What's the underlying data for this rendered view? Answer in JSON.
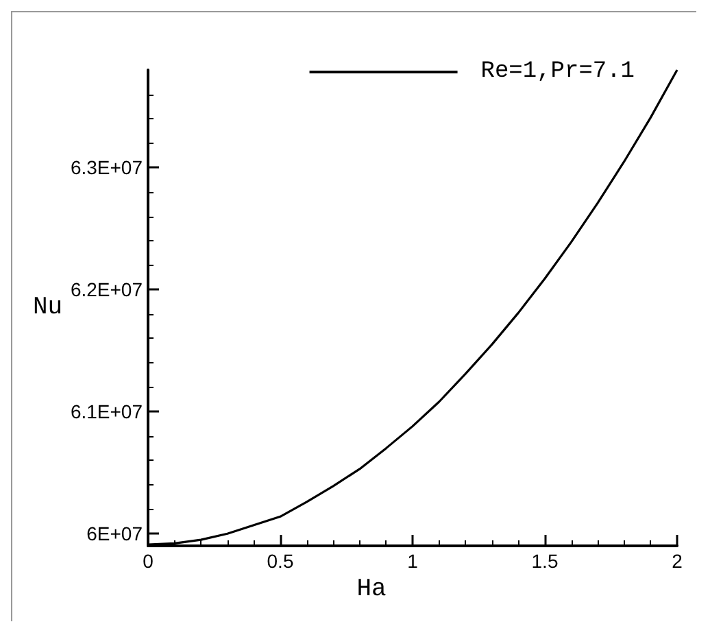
{
  "chart_data": {
    "type": "line",
    "xlabel": "Ha",
    "ylabel": "Nu",
    "x": [
      0,
      0.1,
      0.2,
      0.3,
      0.4,
      0.5,
      0.6,
      0.7,
      0.8,
      0.9,
      1.0,
      1.1,
      1.2,
      1.3,
      1.4,
      1.5,
      1.6,
      1.7,
      1.8,
      1.9,
      2.0
    ],
    "series": [
      {
        "name": "Re=1,Pr=7.1",
        "color": "#000000",
        "values": [
          59910000,
          59920000,
          59950000,
          60000000,
          60070000,
          60140000,
          60260000,
          60390000,
          60530000,
          60700000,
          60880000,
          61080000,
          61310000,
          61550000,
          61810000,
          62090000,
          62390000,
          62710000,
          63050000,
          63410000,
          63800000
        ]
      }
    ],
    "xlim": [
      0,
      2
    ],
    "xticks": [
      0,
      0.5,
      1,
      1.5,
      2
    ],
    "ylim": [
      59900000,
      63800000
    ],
    "yticks": [
      {
        "value": 60000000,
        "label": "6E+07"
      },
      {
        "value": 61000000,
        "label": "6.1E+07"
      },
      {
        "value": 62000000,
        "label": "6.2E+07"
      },
      {
        "value": 63000000,
        "label": "6.3E+07"
      }
    ],
    "grid": false,
    "legend": "top right",
    "marker": "none",
    "line_style": "solid"
  }
}
